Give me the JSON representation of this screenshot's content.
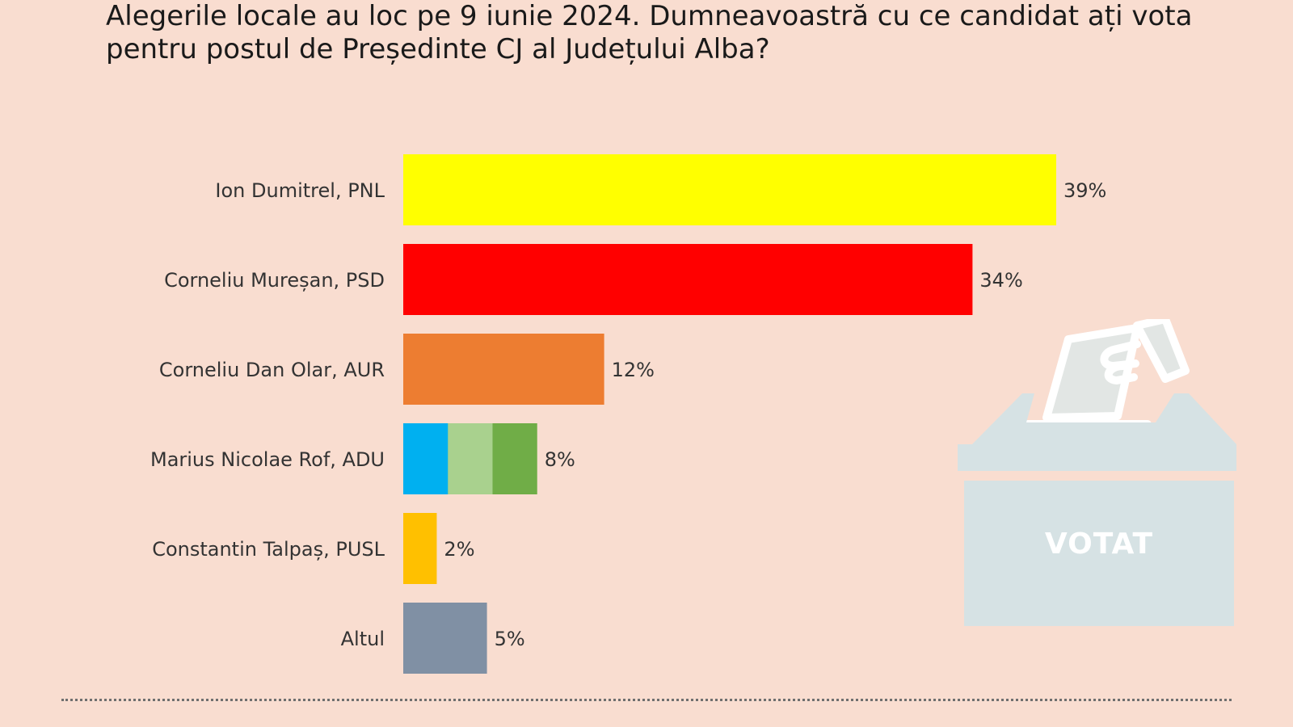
{
  "chart_data": {
    "type": "bar",
    "orientation": "horizontal",
    "title": "Alegerile locale au loc pe 9 iunie 2024. Dumneavoastră cu ce candidat ați vota pentru postul de Președinte CJ al Județului Alba?",
    "categories": [
      "Ion Dumitrel, PNL",
      "Corneliu Mureșan, PSD",
      "Corneliu Dan Olar, AUR",
      "Marius Nicolae Rof, ADU",
      "Constantin Talpaș, PUSL",
      "Altul"
    ],
    "values": [
      39,
      34,
      12,
      8,
      2,
      5
    ],
    "value_labels": [
      "39%",
      "34%",
      "12%",
      "8%",
      "2%",
      "5%"
    ],
    "colors": [
      [
        "#ffff00"
      ],
      [
        "#ff0000"
      ],
      [
        "#ed7d31"
      ],
      [
        "#00b0f0",
        "#a9d18e",
        "#70ad47"
      ],
      [
        "#ffc000"
      ],
      [
        "#8090a4"
      ]
    ],
    "xlim": [
      0,
      39
    ],
    "grid": false,
    "legend": "none"
  },
  "illustration": {
    "icon": "ballot-box-icon",
    "label": "VOTAT",
    "color": "#d6e2e4"
  },
  "colors": {
    "background": "#f9ddd0",
    "divider": "#6f6f6f"
  }
}
